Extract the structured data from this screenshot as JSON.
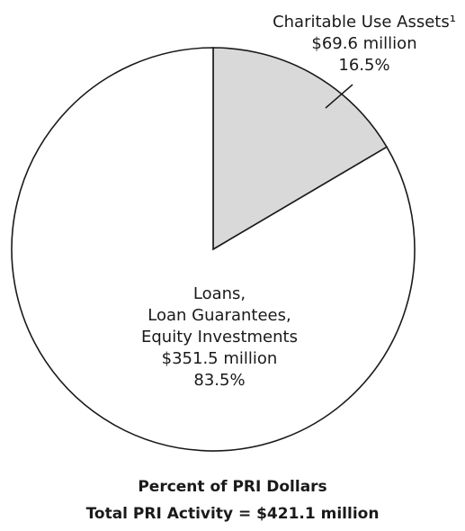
{
  "chart_data": {
    "type": "pie",
    "slices": [
      {
        "label_lines": [
          "Charitable Use Assets¹",
          "$69.6 million",
          "16.5%"
        ],
        "value": 69.6,
        "percent": 16.5,
        "color": "#d9d9d9"
      },
      {
        "label_lines": [
          "Loans,",
          "Loan Guarantees,",
          "Equity Investments",
          "$351.5 million",
          "83.5%"
        ],
        "value": 351.5,
        "percent": 83.5,
        "color": "#ffffff"
      }
    ],
    "title": "Percent of PRI Dollars",
    "subtitle": "Total PRI Activity = $421.1 million",
    "stroke_color": "#1a1a1a"
  }
}
